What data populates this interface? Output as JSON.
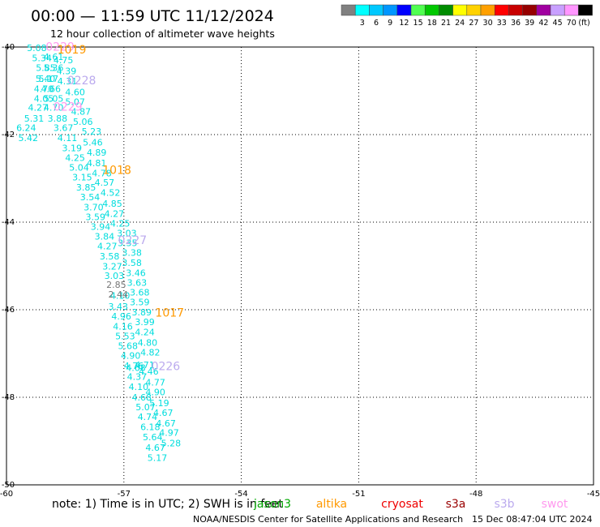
{
  "header": {
    "title": "00:00  —  11:59 UTC 11/12/2024",
    "subtitle": "12 hour collection of altimeter wave heights"
  },
  "legend": {
    "unit": "(ft)",
    "swatches": [
      {
        "color": "#808080",
        "label": ""
      },
      {
        "color": "#00ffff",
        "label": "3"
      },
      {
        "color": "#00c8ff",
        "label": "6"
      },
      {
        "color": "#0096ff",
        "label": "9"
      },
      {
        "color": "#0000ff",
        "label": "12"
      },
      {
        "color": "#50ff50",
        "label": "15"
      },
      {
        "color": "#00c800",
        "label": "18"
      },
      {
        "color": "#008c00",
        "label": "21"
      },
      {
        "color": "#ffff00",
        "label": "24"
      },
      {
        "color": "#ffd200",
        "label": "27"
      },
      {
        "color": "#ffa000",
        "label": "30"
      },
      {
        "color": "#ff0000",
        "label": "33"
      },
      {
        "color": "#c80000",
        "label": "36"
      },
      {
        "color": "#960000",
        "label": "39"
      },
      {
        "color": "#a000a0",
        "label": "42"
      },
      {
        "color": "#c8a0ff",
        "label": "45"
      },
      {
        "color": "#ff96ff",
        "label": "70"
      },
      {
        "color": "#000000",
        "label": ""
      }
    ]
  },
  "axes": {
    "x_ticks": [
      "-60",
      "-57",
      "-54",
      "-51",
      "-48",
      "-45"
    ],
    "y_ticks": [
      "-40",
      "-42",
      "-44",
      "-46",
      "-48",
      "-50"
    ],
    "grid": "dotted"
  },
  "colors": {
    "jason": "#00dddd",
    "altika": "#ff9900",
    "cryosat": "#ee0000",
    "s3a": "#990000",
    "s3b": "#bbaaee",
    "swot": "#ff99ee",
    "low": "#777777",
    "jason_label": "#00aa00"
  },
  "tracks": {
    "jason": [
      {
        "lon": -59.48,
        "lat": -40.09,
        "v": "5.08"
      },
      {
        "lon": -59.35,
        "lat": -40.32,
        "v": "5.34"
      },
      {
        "lon": -59.05,
        "lat": -40.3,
        "v": "4.61"
      },
      {
        "lon": -58.8,
        "lat": -40.37,
        "v": "4.75"
      },
      {
        "lon": -59.25,
        "lat": -40.55,
        "v": "5.85"
      },
      {
        "lon": -59.05,
        "lat": -40.55,
        "v": "5.36"
      },
      {
        "lon": -58.72,
        "lat": -40.62,
        "v": "4.39"
      },
      {
        "lon": -59.26,
        "lat": -40.8,
        "v": "5.40"
      },
      {
        "lon": -59.18,
        "lat": -40.8,
        "v": "5.17"
      },
      {
        "lon": -58.7,
        "lat": -40.85,
        "v": "4.31"
      },
      {
        "lon": -59.3,
        "lat": -41.03,
        "v": "4.70"
      },
      {
        "lon": -59.12,
        "lat": -41.03,
        "v": "4.66"
      },
      {
        "lon": -58.5,
        "lat": -41.1,
        "v": "4.60"
      },
      {
        "lon": -59.3,
        "lat": -41.25,
        "v": "4.05"
      },
      {
        "lon": -59.05,
        "lat": -41.25,
        "v": "5.05"
      },
      {
        "lon": -58.5,
        "lat": -41.32,
        "v": "5.07"
      },
      {
        "lon": -59.45,
        "lat": -41.45,
        "v": "4.27"
      },
      {
        "lon": -59.05,
        "lat": -41.45,
        "v": "4.70"
      },
      {
        "lon": -58.35,
        "lat": -41.55,
        "v": "4.87"
      },
      {
        "lon": -59.55,
        "lat": -41.7,
        "v": "5.31"
      },
      {
        "lon": -58.95,
        "lat": -41.7,
        "v": "3.88"
      },
      {
        "lon": -58.3,
        "lat": -41.78,
        "v": "5.06"
      },
      {
        "lon": -59.75,
        "lat": -41.92,
        "v": "6.24"
      },
      {
        "lon": -58.8,
        "lat": -41.92,
        "v": "3.67"
      },
      {
        "lon": -58.08,
        "lat": -42.0,
        "v": "5.23"
      },
      {
        "lon": -59.7,
        "lat": -42.15,
        "v": "5.42"
      },
      {
        "lon": -58.7,
        "lat": -42.15,
        "v": "4.11"
      },
      {
        "lon": -58.05,
        "lat": -42.25,
        "v": "5.46"
      },
      {
        "lon": -58.58,
        "lat": -42.38,
        "v": "3.19"
      },
      {
        "lon": -57.95,
        "lat": -42.48,
        "v": "4.89"
      },
      {
        "lon": -58.5,
        "lat": -42.6,
        "v": "4.25"
      },
      {
        "lon": -57.95,
        "lat": -42.72,
        "v": "4.81"
      },
      {
        "lon": -58.4,
        "lat": -42.82,
        "v": "5.04"
      },
      {
        "lon": -57.82,
        "lat": -42.95,
        "v": "4.78"
      },
      {
        "lon": -58.32,
        "lat": -43.05,
        "v": "3.15"
      },
      {
        "lon": -57.75,
        "lat": -43.17,
        "v": "4.57"
      },
      {
        "lon": -58.22,
        "lat": -43.28,
        "v": "3.85"
      },
      {
        "lon": -57.6,
        "lat": -43.4,
        "v": "4.52"
      },
      {
        "lon": -58.12,
        "lat": -43.5,
        "v": "3.54"
      },
      {
        "lon": -57.55,
        "lat": -43.65,
        "v": "4.85"
      },
      {
        "lon": -58.03,
        "lat": -43.73,
        "v": "3.70"
      },
      {
        "lon": -57.5,
        "lat": -43.88,
        "v": "4.27"
      },
      {
        "lon": -57.98,
        "lat": -43.95,
        "v": "3.59"
      },
      {
        "lon": -57.35,
        "lat": -44.1,
        "v": "4.25"
      },
      {
        "lon": -57.85,
        "lat": -44.18,
        "v": "3.94"
      },
      {
        "lon": -57.18,
        "lat": -44.32,
        "v": "3.03"
      },
      {
        "lon": -57.75,
        "lat": -44.4,
        "v": "3.84"
      },
      {
        "lon": -57.16,
        "lat": -44.55,
        "v": "3.35"
      },
      {
        "lon": -57.68,
        "lat": -44.62,
        "v": "4.27"
      },
      {
        "lon": -57.05,
        "lat": -44.77,
        "v": "3.38"
      },
      {
        "lon": -57.62,
        "lat": -44.85,
        "v": "3.58"
      },
      {
        "lon": -57.05,
        "lat": -45.0,
        "v": "3.58"
      },
      {
        "lon": -57.55,
        "lat": -45.08,
        "v": "3.27"
      },
      {
        "lon": -56.95,
        "lat": -45.23,
        "v": "3.46"
      },
      {
        "lon": -57.5,
        "lat": -45.3,
        "v": "3.03"
      },
      {
        "lon": -56.92,
        "lat": -45.45,
        "v": "3.63"
      },
      {
        "lon": -56.85,
        "lat": -45.68,
        "v": "3.68"
      },
      {
        "lon": -57.35,
        "lat": -45.75,
        "v": "4.10"
      },
      {
        "lon": -56.85,
        "lat": -45.9,
        "v": "3.59"
      },
      {
        "lon": -57.4,
        "lat": -46.0,
        "v": "3.43"
      },
      {
        "lon": -56.8,
        "lat": -46.13,
        "v": "3.89"
      },
      {
        "lon": -57.32,
        "lat": -46.22,
        "v": "4.96"
      },
      {
        "lon": -56.72,
        "lat": -46.35,
        "v": "3.99"
      },
      {
        "lon": -57.28,
        "lat": -46.45,
        "v": "4.16"
      },
      {
        "lon": -56.72,
        "lat": -46.58,
        "v": "4.24"
      },
      {
        "lon": -57.22,
        "lat": -46.68,
        "v": "5.53"
      },
      {
        "lon": -56.65,
        "lat": -46.82,
        "v": "4.80"
      },
      {
        "lon": -57.15,
        "lat": -46.9,
        "v": "5.68"
      },
      {
        "lon": -56.58,
        "lat": -47.05,
        "v": "4.82"
      },
      {
        "lon": -57.08,
        "lat": -47.12,
        "v": "4.90"
      },
      {
        "lon": -57.0,
        "lat": -47.35,
        "v": "4.76"
      },
      {
        "lon": -56.72,
        "lat": -47.33,
        "v": "4.71"
      },
      {
        "lon": -56.95,
        "lat": -47.4,
        "v": "4.68"
      },
      {
        "lon": -56.62,
        "lat": -47.48,
        "v": "4.46"
      },
      {
        "lon": -56.92,
        "lat": -47.6,
        "v": "4.37"
      },
      {
        "lon": -56.45,
        "lat": -47.73,
        "v": "4.77"
      },
      {
        "lon": -56.88,
        "lat": -47.83,
        "v": "4.10"
      },
      {
        "lon": -56.45,
        "lat": -47.95,
        "v": "4.90"
      },
      {
        "lon": -56.8,
        "lat": -48.07,
        "v": "4.68"
      },
      {
        "lon": -56.35,
        "lat": -48.2,
        "v": "5.19"
      },
      {
        "lon": -56.7,
        "lat": -48.3,
        "v": "5.07"
      },
      {
        "lon": -56.25,
        "lat": -48.43,
        "v": "4.67"
      },
      {
        "lon": -56.65,
        "lat": -48.52,
        "v": "4.74"
      },
      {
        "lon": -56.18,
        "lat": -48.67,
        "v": "4.67"
      },
      {
        "lon": -56.58,
        "lat": -48.75,
        "v": "6.18"
      },
      {
        "lon": -56.1,
        "lat": -48.88,
        "v": "4.97"
      },
      {
        "lon": -56.52,
        "lat": -48.98,
        "v": "5.64"
      },
      {
        "lon": -56.05,
        "lat": -49.12,
        "v": "5.28"
      },
      {
        "lon": -56.45,
        "lat": -49.22,
        "v": "4.67"
      },
      {
        "lon": -56.4,
        "lat": -49.45,
        "v": "5.17"
      }
    ],
    "low": [
      {
        "lon": -57.45,
        "lat": -45.5,
        "v": "2.85"
      },
      {
        "lon": -57.4,
        "lat": -45.72,
        "v": "2.44"
      }
    ],
    "altika": [
      {
        "lon": -58.7,
        "lat": -40.15,
        "v": "1019"
      },
      {
        "lon": -57.55,
        "lat": -42.9,
        "v": "1018"
      },
      {
        "lon": -56.2,
        "lat": -46.16,
        "v": "1017"
      }
    ],
    "s3b": [
      {
        "lon": -58.45,
        "lat": -40.85,
        "v": "0228"
      },
      {
        "lon": -57.15,
        "lat": -44.5,
        "v": "0227"
      },
      {
        "lon": -56.3,
        "lat": -47.38,
        "v": "0226"
      }
    ],
    "swot": [
      {
        "lon": -59.0,
        "lat": -40.08,
        "v": "0229"
      },
      {
        "lon": -58.8,
        "lat": -41.45,
        "v": "0229"
      }
    ]
  },
  "footer": {
    "note": "note:  1) Time is in UTC; 2) SWH is in feet",
    "satellites": [
      {
        "key": "jason",
        "name": "jason3",
        "color": "#00aa00"
      },
      {
        "key": "altika",
        "name": "altika",
        "color": "#ff9900"
      },
      {
        "key": "cryosat",
        "name": "cryosat",
        "color": "#ee0000"
      },
      {
        "key": "s3a",
        "name": "s3a",
        "color": "#990000"
      },
      {
        "key": "s3b",
        "name": "s3b",
        "color": "#bbaaee"
      },
      {
        "key": "swot",
        "name": "swot",
        "color": "#ff99ee"
      }
    ],
    "credit": "NOAA/NESDIS Center for Satellite Applications and Research",
    "timestamp": "15 Dec 08:47:04 UTC 2024"
  }
}
